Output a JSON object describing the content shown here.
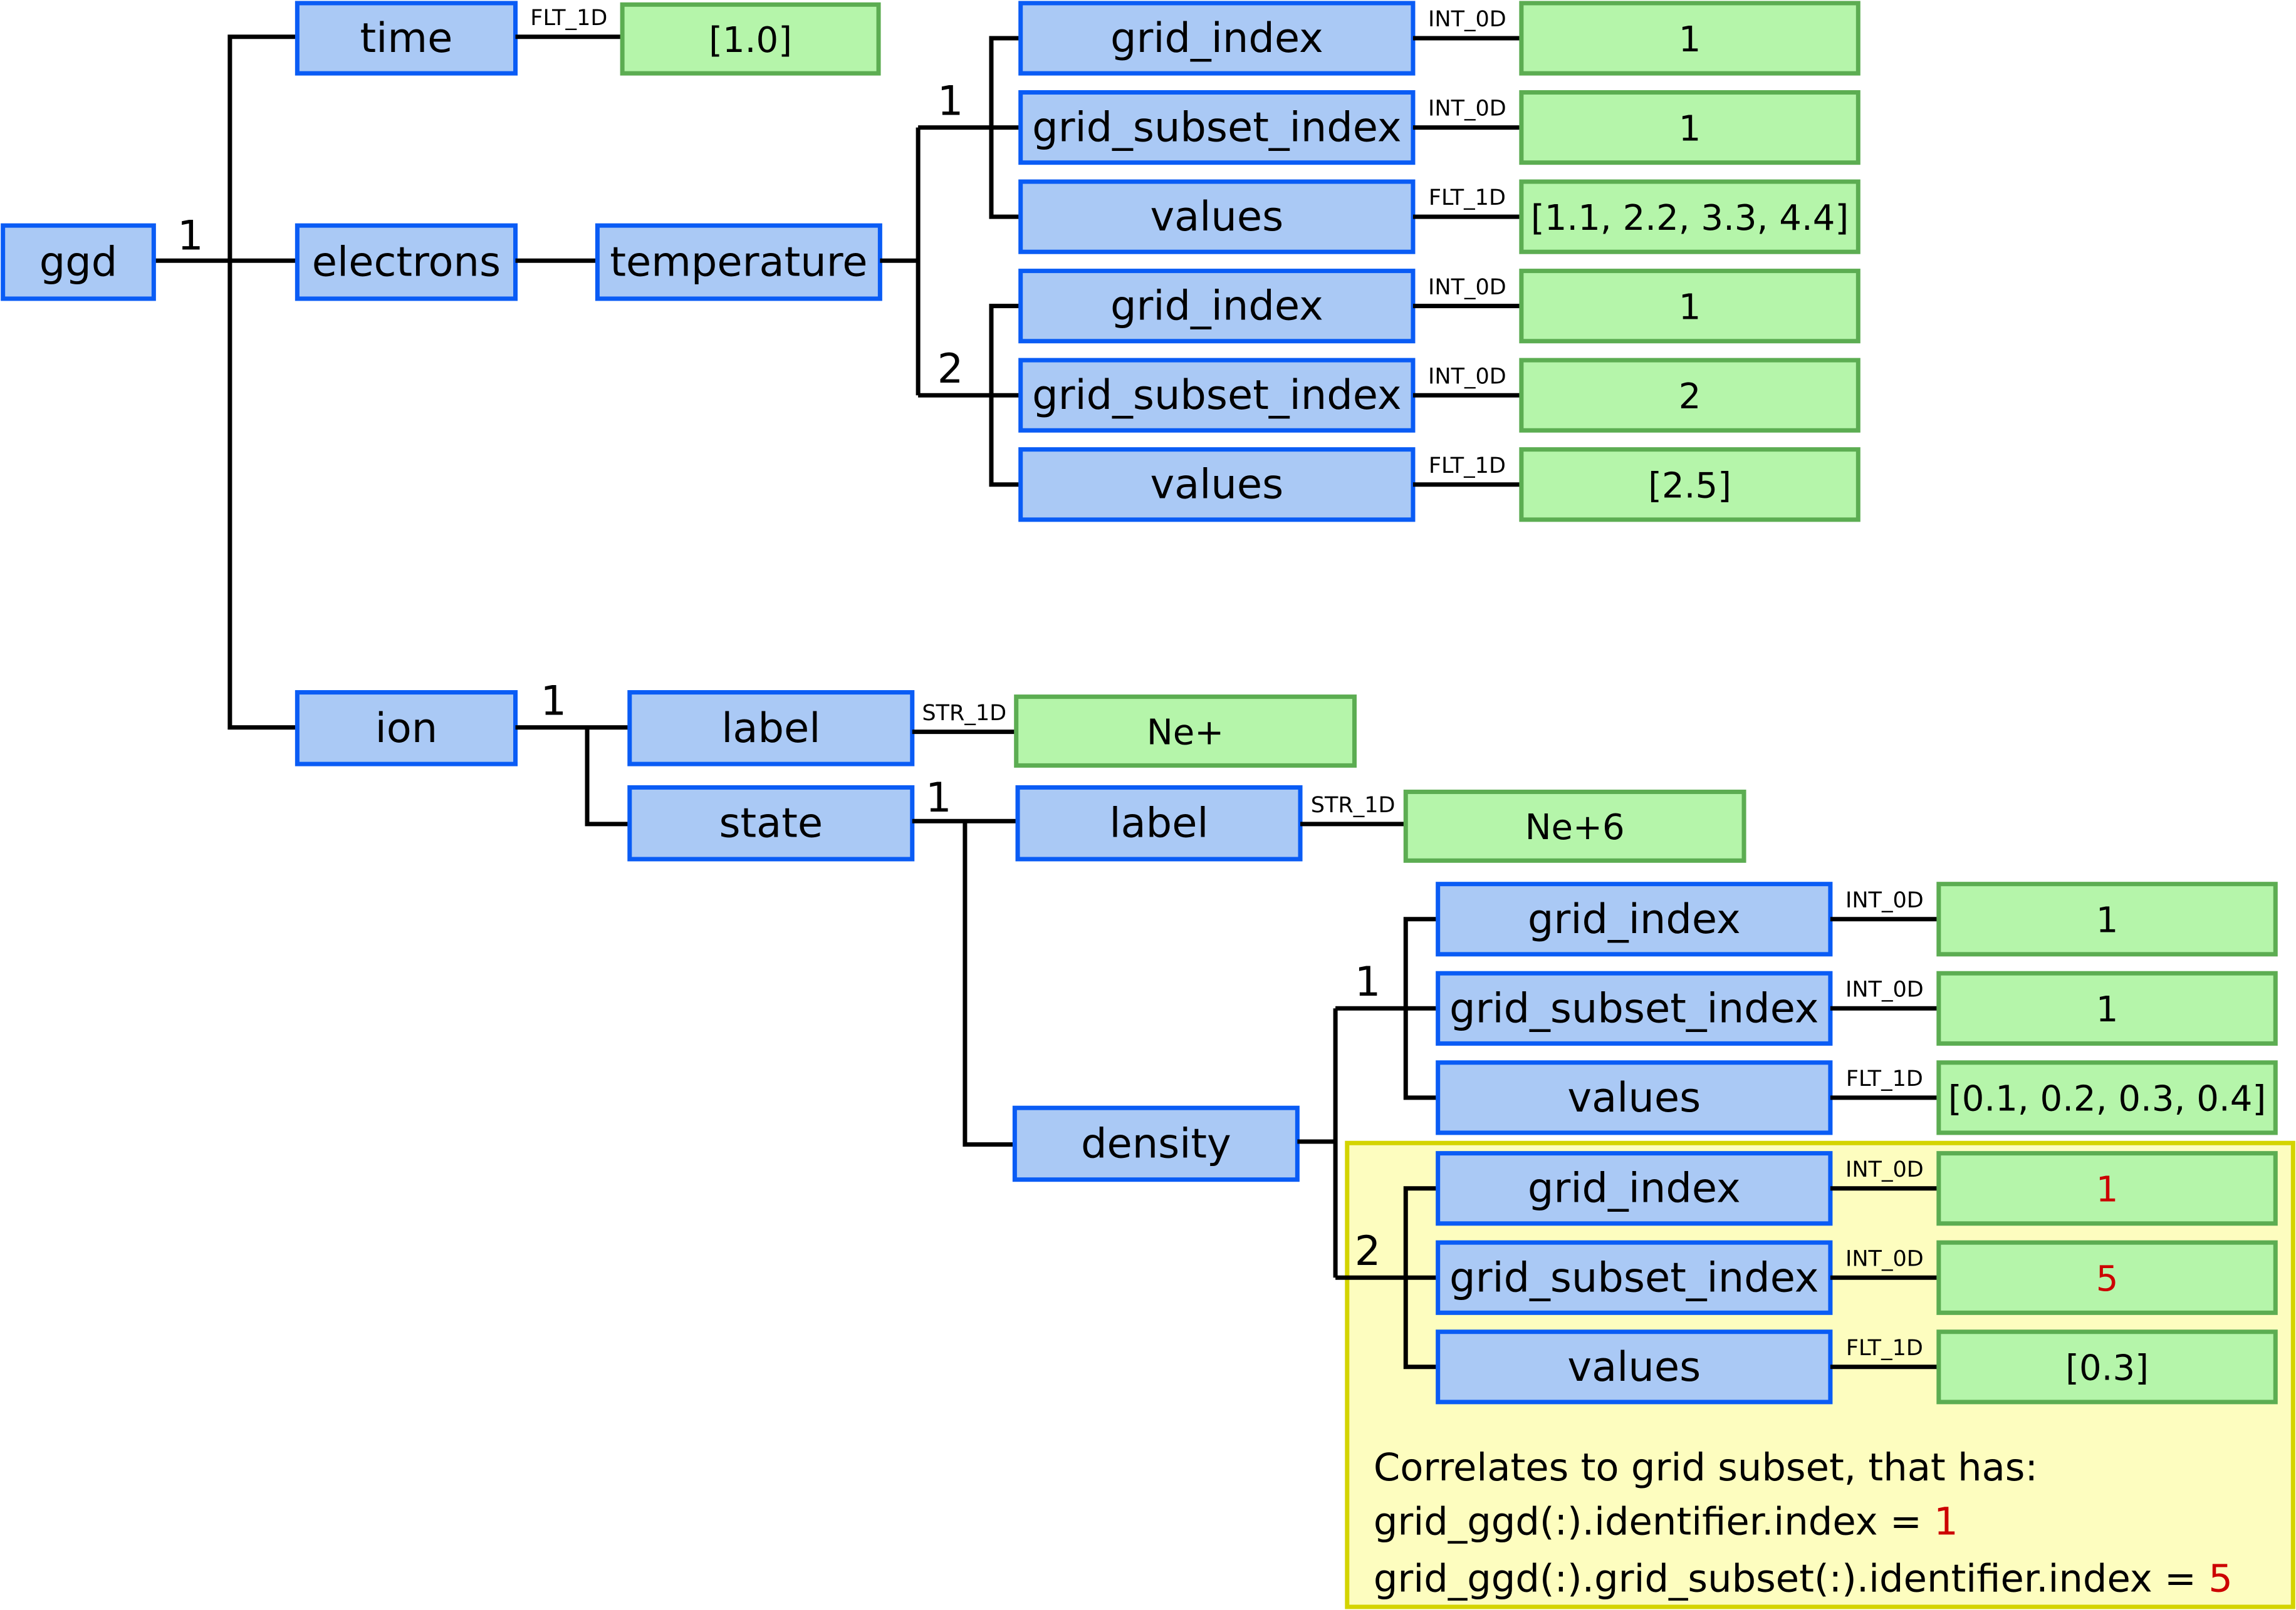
{
  "nodes": {
    "ggd": "ggd",
    "time": "time",
    "electrons": "electrons",
    "temperature": "temperature",
    "ion": "ion",
    "ion_label": "label",
    "state": "state",
    "state_label": "label",
    "density": "density"
  },
  "multiplicity": {
    "ggd": "1",
    "ion": "1",
    "state": "1"
  },
  "time_leaf": {
    "type": "FLT_1D",
    "value": "[1.0]"
  },
  "ion_label_leaf": {
    "type": "STR_1D",
    "value": "Ne+"
  },
  "state_label_leaf": {
    "type": "STR_1D",
    "value": "Ne+6"
  },
  "temperature_ggd": [
    {
      "index": "1",
      "fields": [
        {
          "name": "grid_index",
          "type": "INT_0D",
          "value": "1"
        },
        {
          "name": "grid_subset_index",
          "type": "INT_0D",
          "value": "1"
        },
        {
          "name": "values",
          "type": "FLT_1D",
          "value": "[1.1, 2.2, 3.3, 4.4]"
        }
      ]
    },
    {
      "index": "2",
      "fields": [
        {
          "name": "grid_index",
          "type": "INT_0D",
          "value": "1"
        },
        {
          "name": "grid_subset_index",
          "type": "INT_0D",
          "value": "2"
        },
        {
          "name": "values",
          "type": "FLT_1D",
          "value": "[2.5]"
        }
      ]
    }
  ],
  "density_ggd": [
    {
      "index": "1",
      "fields": [
        {
          "name": "grid_index",
          "type": "INT_0D",
          "value": "1"
        },
        {
          "name": "grid_subset_index",
          "type": "INT_0D",
          "value": "1"
        },
        {
          "name": "values",
          "type": "FLT_1D",
          "value": "[0.1, 0.2, 0.3, 0.4]"
        }
      ]
    },
    {
      "index": "2",
      "fields": [
        {
          "name": "grid_index",
          "type": "INT_0D",
          "value": "1",
          "highlight": true
        },
        {
          "name": "grid_subset_index",
          "type": "INT_0D",
          "value": "5",
          "highlight": true
        },
        {
          "name": "values",
          "type": "FLT_1D",
          "value": "[0.3]"
        }
      ]
    }
  ],
  "note": {
    "line1": "Correlates to grid subset, that has:",
    "line2_prefix": "grid_ggd(:).identifier.index = ",
    "line2_value": "1",
    "line3_prefix": "grid_ggd(:).grid_subset(:).identifier.index = ",
    "line3_value": "5"
  },
  "colors": {
    "node_fill": "#aac9f5",
    "node_border": "#0a5cf5",
    "leaf_fill": "#b5f5aa",
    "leaf_border": "#5cad52",
    "note_fill": "#fdfdbf",
    "note_border": "#d4d400",
    "highlight": "#cc0000"
  }
}
